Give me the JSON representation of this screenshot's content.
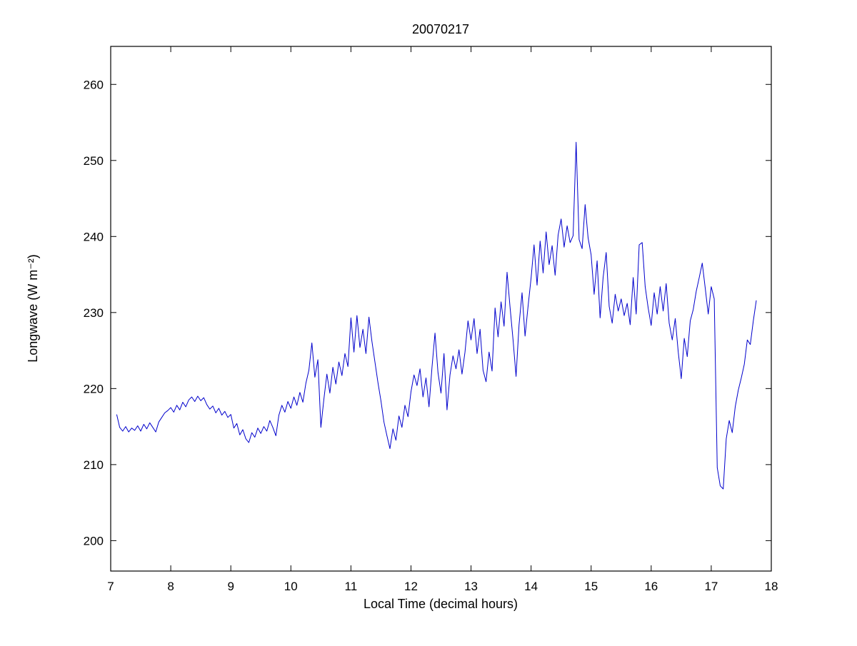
{
  "chart_data": {
    "type": "line",
    "title": "20070217",
    "xlabel": "Local Time (decimal hours)",
    "ylabel": "Longwave (W m⁻²)",
    "xlim": [
      7,
      18
    ],
    "ylim": [
      196,
      265
    ],
    "xticks": [
      7,
      8,
      9,
      10,
      11,
      12,
      13,
      14,
      15,
      16,
      17,
      18
    ],
    "yticks": [
      200,
      210,
      220,
      230,
      240,
      250,
      260
    ],
    "grid": false,
    "line_color": "#0000CC",
    "axes_color": "#000000",
    "background": "#FFFFFF",
    "points": [
      [
        7.1,
        216.6
      ],
      [
        7.15,
        214.9
      ],
      [
        7.2,
        214.4
      ],
      [
        7.25,
        215.0
      ],
      [
        7.3,
        214.3
      ],
      [
        7.35,
        214.8
      ],
      [
        7.4,
        214.5
      ],
      [
        7.45,
        215.1
      ],
      [
        7.5,
        214.4
      ],
      [
        7.55,
        215.3
      ],
      [
        7.6,
        214.7
      ],
      [
        7.65,
        215.5
      ],
      [
        7.7,
        214.9
      ],
      [
        7.75,
        214.3
      ],
      [
        7.8,
        215.6
      ],
      [
        7.85,
        216.2
      ],
      [
        7.9,
        216.8
      ],
      [
        7.95,
        217.1
      ],
      [
        8.0,
        217.5
      ],
      [
        8.05,
        216.9
      ],
      [
        8.1,
        217.8
      ],
      [
        8.15,
        217.2
      ],
      [
        8.2,
        218.2
      ],
      [
        8.25,
        217.6
      ],
      [
        8.3,
        218.5
      ],
      [
        8.35,
        218.9
      ],
      [
        8.4,
        218.3
      ],
      [
        8.45,
        219.0
      ],
      [
        8.5,
        218.4
      ],
      [
        8.55,
        218.8
      ],
      [
        8.6,
        217.9
      ],
      [
        8.65,
        217.3
      ],
      [
        8.7,
        217.7
      ],
      [
        8.75,
        216.8
      ],
      [
        8.8,
        217.4
      ],
      [
        8.85,
        216.5
      ],
      [
        8.9,
        217.0
      ],
      [
        8.95,
        216.2
      ],
      [
        9.0,
        216.6
      ],
      [
        9.05,
        214.8
      ],
      [
        9.1,
        215.4
      ],
      [
        9.15,
        213.9
      ],
      [
        9.2,
        214.6
      ],
      [
        9.25,
        213.4
      ],
      [
        9.3,
        212.9
      ],
      [
        9.35,
        214.2
      ],
      [
        9.4,
        213.6
      ],
      [
        9.45,
        214.8
      ],
      [
        9.5,
        214.1
      ],
      [
        9.55,
        215.0
      ],
      [
        9.6,
        214.4
      ],
      [
        9.65,
        215.8
      ],
      [
        9.7,
        214.9
      ],
      [
        9.75,
        213.8
      ],
      [
        9.8,
        216.5
      ],
      [
        9.85,
        217.8
      ],
      [
        9.9,
        216.9
      ],
      [
        9.95,
        218.3
      ],
      [
        10.0,
        217.4
      ],
      [
        10.05,
        218.9
      ],
      [
        10.1,
        217.8
      ],
      [
        10.15,
        219.5
      ],
      [
        10.2,
        218.2
      ],
      [
        10.25,
        220.7
      ],
      [
        10.3,
        222.4
      ],
      [
        10.35,
        226.0
      ],
      [
        10.4,
        221.5
      ],
      [
        10.45,
        223.8
      ],
      [
        10.5,
        214.9
      ],
      [
        10.55,
        218.6
      ],
      [
        10.6,
        221.9
      ],
      [
        10.65,
        219.4
      ],
      [
        10.7,
        222.8
      ],
      [
        10.75,
        220.6
      ],
      [
        10.8,
        223.5
      ],
      [
        10.85,
        221.7
      ],
      [
        10.9,
        224.6
      ],
      [
        10.95,
        222.9
      ],
      [
        11.0,
        229.3
      ],
      [
        11.05,
        224.8
      ],
      [
        11.1,
        229.6
      ],
      [
        11.15,
        225.4
      ],
      [
        11.2,
        227.8
      ],
      [
        11.25,
        224.6
      ],
      [
        11.3,
        229.4
      ],
      [
        11.35,
        226.2
      ],
      [
        11.4,
        223.5
      ],
      [
        11.45,
        220.8
      ],
      [
        11.5,
        218.4
      ],
      [
        11.55,
        215.6
      ],
      [
        11.6,
        213.8
      ],
      [
        11.65,
        212.1
      ],
      [
        11.7,
        214.7
      ],
      [
        11.75,
        213.2
      ],
      [
        11.8,
        216.4
      ],
      [
        11.85,
        214.9
      ],
      [
        11.9,
        217.8
      ],
      [
        11.95,
        216.3
      ],
      [
        12.0,
        219.6
      ],
      [
        12.05,
        221.8
      ],
      [
        12.1,
        220.4
      ],
      [
        12.15,
        222.6
      ],
      [
        12.2,
        218.9
      ],
      [
        12.25,
        221.4
      ],
      [
        12.3,
        217.6
      ],
      [
        12.35,
        222.8
      ],
      [
        12.4,
        227.3
      ],
      [
        12.45,
        222.1
      ],
      [
        12.5,
        219.4
      ],
      [
        12.55,
        224.6
      ],
      [
        12.6,
        217.2
      ],
      [
        12.65,
        221.8
      ],
      [
        12.7,
        224.3
      ],
      [
        12.75,
        222.6
      ],
      [
        12.8,
        225.1
      ],
      [
        12.85,
        221.9
      ],
      [
        12.9,
        224.8
      ],
      [
        12.95,
        228.9
      ],
      [
        13.0,
        226.4
      ],
      [
        13.05,
        229.2
      ],
      [
        13.1,
        224.6
      ],
      [
        13.15,
        227.8
      ],
      [
        13.2,
        222.4
      ],
      [
        13.25,
        220.9
      ],
      [
        13.3,
        224.8
      ],
      [
        13.35,
        222.3
      ],
      [
        13.4,
        230.6
      ],
      [
        13.45,
        226.8
      ],
      [
        13.5,
        231.4
      ],
      [
        13.55,
        228.2
      ],
      [
        13.6,
        235.3
      ],
      [
        13.65,
        230.7
      ],
      [
        13.7,
        226.4
      ],
      [
        13.75,
        221.6
      ],
      [
        13.8,
        228.4
      ],
      [
        13.85,
        232.6
      ],
      [
        13.9,
        226.9
      ],
      [
        13.95,
        230.8
      ],
      [
        14.0,
        234.5
      ],
      [
        14.05,
        238.9
      ],
      [
        14.1,
        233.6
      ],
      [
        14.15,
        239.4
      ],
      [
        14.2,
        235.2
      ],
      [
        14.25,
        240.6
      ],
      [
        14.3,
        236.3
      ],
      [
        14.35,
        238.8
      ],
      [
        14.4,
        234.9
      ],
      [
        14.45,
        240.2
      ],
      [
        14.5,
        242.3
      ],
      [
        14.55,
        238.6
      ],
      [
        14.6,
        241.4
      ],
      [
        14.65,
        239.2
      ],
      [
        14.7,
        240.1
      ],
      [
        14.75,
        252.4
      ],
      [
        14.8,
        239.6
      ],
      [
        14.85,
        238.4
      ],
      [
        14.9,
        244.2
      ],
      [
        14.95,
        239.8
      ],
      [
        15.0,
        237.6
      ],
      [
        15.05,
        232.4
      ],
      [
        15.1,
        236.8
      ],
      [
        15.15,
        229.3
      ],
      [
        15.2,
        234.6
      ],
      [
        15.25,
        237.9
      ],
      [
        15.3,
        230.8
      ],
      [
        15.35,
        228.6
      ],
      [
        15.4,
        232.4
      ],
      [
        15.45,
        230.2
      ],
      [
        15.5,
        231.8
      ],
      [
        15.55,
        229.6
      ],
      [
        15.6,
        231.2
      ],
      [
        15.65,
        228.4
      ],
      [
        15.7,
        234.6
      ],
      [
        15.75,
        229.8
      ],
      [
        15.8,
        238.9
      ],
      [
        15.85,
        239.2
      ],
      [
        15.9,
        233.4
      ],
      [
        15.95,
        230.6
      ],
      [
        16.0,
        228.3
      ],
      [
        16.05,
        232.6
      ],
      [
        16.1,
        229.8
      ],
      [
        16.15,
        233.4
      ],
      [
        16.2,
        230.2
      ],
      [
        16.25,
        233.8
      ],
      [
        16.3,
        228.6
      ],
      [
        16.35,
        226.4
      ],
      [
        16.4,
        229.2
      ],
      [
        16.45,
        224.8
      ],
      [
        16.5,
        221.3
      ],
      [
        16.55,
        226.6
      ],
      [
        16.6,
        224.2
      ],
      [
        16.65,
        228.9
      ],
      [
        16.7,
        230.4
      ],
      [
        16.75,
        232.8
      ],
      [
        16.8,
        234.6
      ],
      [
        16.85,
        236.5
      ],
      [
        16.9,
        233.2
      ],
      [
        16.95,
        229.8
      ],
      [
        17.0,
        233.4
      ],
      [
        17.05,
        231.8
      ],
      [
        17.1,
        209.6
      ],
      [
        17.15,
        207.2
      ],
      [
        17.2,
        206.8
      ],
      [
        17.25,
        213.4
      ],
      [
        17.3,
        215.8
      ],
      [
        17.35,
        214.2
      ],
      [
        17.4,
        217.6
      ],
      [
        17.45,
        219.8
      ],
      [
        17.5,
        221.4
      ],
      [
        17.55,
        223.2
      ],
      [
        17.6,
        226.4
      ],
      [
        17.65,
        225.8
      ],
      [
        17.7,
        228.9
      ],
      [
        17.75,
        231.6
      ]
    ]
  }
}
